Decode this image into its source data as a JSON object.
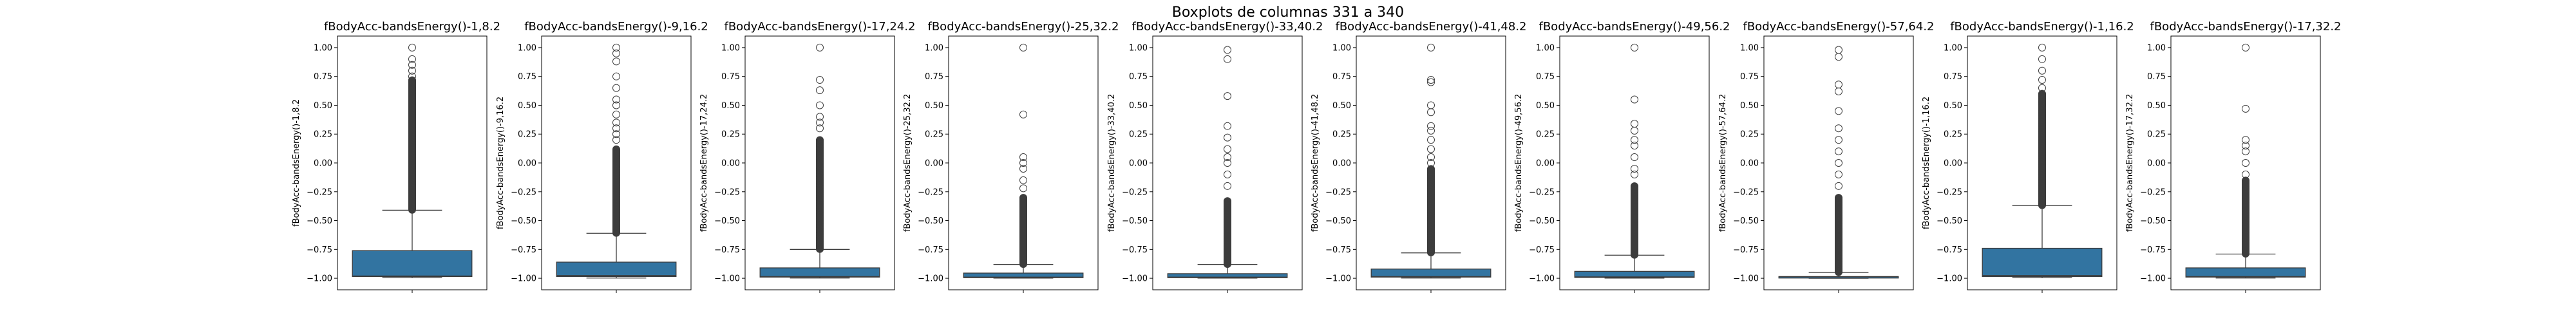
{
  "figure": {
    "suptitle": "Boxplots de columnas 331 a 340"
  },
  "style": {
    "box_color": "#3274a1",
    "line_color": "#3d3d3d",
    "outlier_edge": "#3d3d3d"
  },
  "chart_data": [
    {
      "type": "box",
      "title": "fBodyAcc-bandsEnergy()-1,8.2",
      "ylabel": "fBodyAcc-bandsEnergy()-1,8.2",
      "ylim": [
        -1.1,
        1.1
      ],
      "yticks": [
        -1.0,
        -0.75,
        -0.5,
        -0.25,
        0.0,
        0.25,
        0.5,
        0.75,
        1.0
      ],
      "ytick_labels": [
        "−1.00",
        "−0.75",
        "−0.50",
        "−0.25",
        "0.00",
        "0.25",
        "0.50",
        "0.75",
        "1.00"
      ],
      "whisker_low": -0.995,
      "q1": -0.985,
      "median": -0.98,
      "q3": -0.76,
      "whisker_high": -0.41,
      "outliers_low": -0.41,
      "outliers_high": 0.72,
      "outliers_sparse": [
        0.75,
        0.8,
        0.85,
        0.9,
        1.0
      ]
    },
    {
      "type": "box",
      "title": "fBodyAcc-bandsEnergy()-9,16.2",
      "ylabel": "fBodyAcc-bandsEnergy()-9,16.2",
      "ylim": [
        -1.1,
        1.1
      ],
      "yticks": [
        -1.0,
        -0.75,
        -0.5,
        -0.25,
        0.0,
        0.25,
        0.5,
        0.75,
        1.0
      ],
      "ytick_labels": [
        "−1.00",
        "−0.75",
        "−0.50",
        "−0.25",
        "0.00",
        "0.25",
        "0.50",
        "0.75",
        "1.00"
      ],
      "whisker_low": -0.998,
      "q1": -0.985,
      "median": -0.975,
      "q3": -0.86,
      "whisker_high": -0.61,
      "outliers_low": -0.61,
      "outliers_high": 0.12,
      "outliers_sparse": [
        0.2,
        0.25,
        0.3,
        0.35,
        0.42,
        0.5,
        0.55,
        0.65,
        0.75,
        0.88,
        0.95,
        1.0
      ]
    },
    {
      "type": "box",
      "title": "fBodyAcc-bandsEnergy()-17,24.2",
      "ylabel": "fBodyAcc-bandsEnergy()-17,24.2",
      "ylim": [
        -1.1,
        1.1
      ],
      "yticks": [
        -1.0,
        -0.75,
        -0.5,
        -0.25,
        0.0,
        0.25,
        0.5,
        0.75,
        1.0
      ],
      "ytick_labels": [
        "−1.00",
        "−0.75",
        "−0.50",
        "−0.25",
        "0.00",
        "0.25",
        "0.50",
        "0.75",
        "1.00"
      ],
      "whisker_low": -0.998,
      "q1": -0.99,
      "median": -0.985,
      "q3": -0.91,
      "whisker_high": -0.75,
      "outliers_low": -0.75,
      "outliers_high": 0.2,
      "outliers_sparse": [
        0.3,
        0.35,
        0.4,
        0.5,
        0.63,
        0.72,
        1.0
      ]
    },
    {
      "type": "box",
      "title": "fBodyAcc-bandsEnergy()-25,32.2",
      "ylabel": "fBodyAcc-bandsEnergy()-25,32.2",
      "ylim": [
        -1.1,
        1.1
      ],
      "yticks": [
        -1.0,
        -0.75,
        -0.5,
        -0.25,
        0.0,
        0.25,
        0.5,
        0.75,
        1.0
      ],
      "ytick_labels": [
        "−1.00",
        "−0.75",
        "−0.50",
        "−0.25",
        "0.00",
        "0.25",
        "0.50",
        "0.75",
        "1.00"
      ],
      "whisker_low": -0.999,
      "q1": -0.995,
      "median": -0.99,
      "q3": -0.955,
      "whisker_high": -0.88,
      "outliers_low": -0.88,
      "outliers_high": -0.3,
      "outliers_sparse": [
        -0.22,
        -0.15,
        -0.05,
        0.0,
        0.05,
        0.42,
        1.0
      ]
    },
    {
      "type": "box",
      "title": "fBodyAcc-bandsEnergy()-33,40.2",
      "ylabel": "fBodyAcc-bandsEnergy()-33,40.2",
      "ylim": [
        -1.1,
        1.1
      ],
      "yticks": [
        -1.0,
        -0.75,
        -0.5,
        -0.25,
        0.0,
        0.25,
        0.5,
        0.75,
        1.0
      ],
      "ytick_labels": [
        "−1.00",
        "−0.75",
        "−0.50",
        "−0.25",
        "0.00",
        "0.25",
        "0.50",
        "0.75",
        "1.00"
      ],
      "whisker_low": -0.999,
      "q1": -0.995,
      "median": -0.99,
      "q3": -0.96,
      "whisker_high": -0.88,
      "outliers_low": -0.88,
      "outliers_high": -0.33,
      "outliers_sparse": [
        -0.2,
        -0.1,
        0.0,
        0.05,
        0.12,
        0.22,
        0.32,
        0.58,
        0.9,
        0.98
      ]
    },
    {
      "type": "box",
      "title": "fBodyAcc-bandsEnergy()-41,48.2",
      "ylabel": "fBodyAcc-bandsEnergy()-41,48.2",
      "ylim": [
        -1.1,
        1.1
      ],
      "yticks": [
        -1.0,
        -0.75,
        -0.5,
        -0.25,
        0.0,
        0.25,
        0.5,
        0.75,
        1.0
      ],
      "ytick_labels": [
        "−1.00",
        "−0.75",
        "−0.50",
        "−0.25",
        "0.00",
        "0.25",
        "0.50",
        "0.75",
        "1.00"
      ],
      "whisker_low": -0.998,
      "q1": -0.99,
      "median": -0.985,
      "q3": -0.92,
      "whisker_high": -0.78,
      "outliers_low": -0.78,
      "outliers_high": -0.05,
      "outliers_sparse": [
        0.0,
        0.05,
        0.12,
        0.2,
        0.28,
        0.32,
        0.44,
        0.5,
        0.7,
        0.72,
        1.0
      ]
    },
    {
      "type": "box",
      "title": "fBodyAcc-bandsEnergy()-49,56.2",
      "ylabel": "fBodyAcc-bandsEnergy()-49,56.2",
      "ylim": [
        -1.1,
        1.1
      ],
      "yticks": [
        -1.0,
        -0.75,
        -0.5,
        -0.25,
        0.0,
        0.25,
        0.5,
        0.75,
        1.0
      ],
      "ytick_labels": [
        "−1.00",
        "−0.75",
        "−0.50",
        "−0.25",
        "0.00",
        "0.25",
        "0.50",
        "0.75",
        "1.00"
      ],
      "whisker_low": -0.999,
      "q1": -0.993,
      "median": -0.988,
      "q3": -0.94,
      "whisker_high": -0.8,
      "outliers_low": -0.8,
      "outliers_high": -0.2,
      "outliers_sparse": [
        -0.1,
        -0.05,
        0.05,
        0.15,
        0.2,
        0.28,
        0.34,
        0.55,
        1.0
      ]
    },
    {
      "type": "box",
      "title": "fBodyAcc-bandsEnergy()-57,64.2",
      "ylabel": "fBodyAcc-bandsEnergy()-57,64.2",
      "ylim": [
        -1.1,
        1.1
      ],
      "yticks": [
        -1.0,
        -0.75,
        -0.5,
        -0.25,
        0.0,
        0.25,
        0.5,
        0.75,
        1.0
      ],
      "ytick_labels": [
        "−1.00",
        "−0.75",
        "−0.50",
        "−0.25",
        "0.00",
        "0.25",
        "0.50",
        "0.75",
        "1.00"
      ],
      "whisker_low": -1.0,
      "q1": -0.998,
      "median": -0.996,
      "q3": -0.985,
      "whisker_high": -0.95,
      "outliers_low": -0.95,
      "outliers_high": -0.3,
      "outliers_sparse": [
        -0.2,
        -0.1,
        0.0,
        0.1,
        0.2,
        0.3,
        0.45,
        0.62,
        0.68,
        0.92,
        0.98
      ]
    },
    {
      "type": "box",
      "title": "fBodyAcc-bandsEnergy()-1,16.2",
      "ylabel": "fBodyAcc-bandsEnergy()-1,16.2",
      "ylim": [
        -1.1,
        1.1
      ],
      "yticks": [
        -1.0,
        -0.75,
        -0.5,
        -0.25,
        0.0,
        0.25,
        0.5,
        0.75,
        1.0
      ],
      "ytick_labels": [
        "−1.00",
        "−0.75",
        "−0.50",
        "−0.25",
        "0.00",
        "0.25",
        "0.50",
        "0.75",
        "1.00"
      ],
      "whisker_low": -0.995,
      "q1": -0.985,
      "median": -0.975,
      "q3": -0.74,
      "whisker_high": -0.37,
      "outliers_low": -0.37,
      "outliers_high": 0.6,
      "outliers_sparse": [
        0.65,
        0.72,
        0.8,
        0.9,
        1.0
      ]
    },
    {
      "type": "box",
      "title": "fBodyAcc-bandsEnergy()-17,32.2",
      "ylabel": "fBodyAcc-bandsEnergy()-17,32.2",
      "ylim": [
        -1.1,
        1.1
      ],
      "yticks": [
        -1.0,
        -0.75,
        -0.5,
        -0.25,
        0.0,
        0.25,
        0.5,
        0.75,
        1.0
      ],
      "ytick_labels": [
        "−1.00",
        "−0.75",
        "−0.50",
        "−0.25",
        "0.00",
        "0.25",
        "0.50",
        "0.75",
        "1.00"
      ],
      "whisker_low": -0.998,
      "q1": -0.99,
      "median": -0.985,
      "q3": -0.91,
      "whisker_high": -0.79,
      "outliers_low": -0.79,
      "outliers_high": -0.15,
      "outliers_sparse": [
        -0.1,
        0.0,
        0.1,
        0.15,
        0.2,
        0.47,
        1.0
      ]
    }
  ]
}
